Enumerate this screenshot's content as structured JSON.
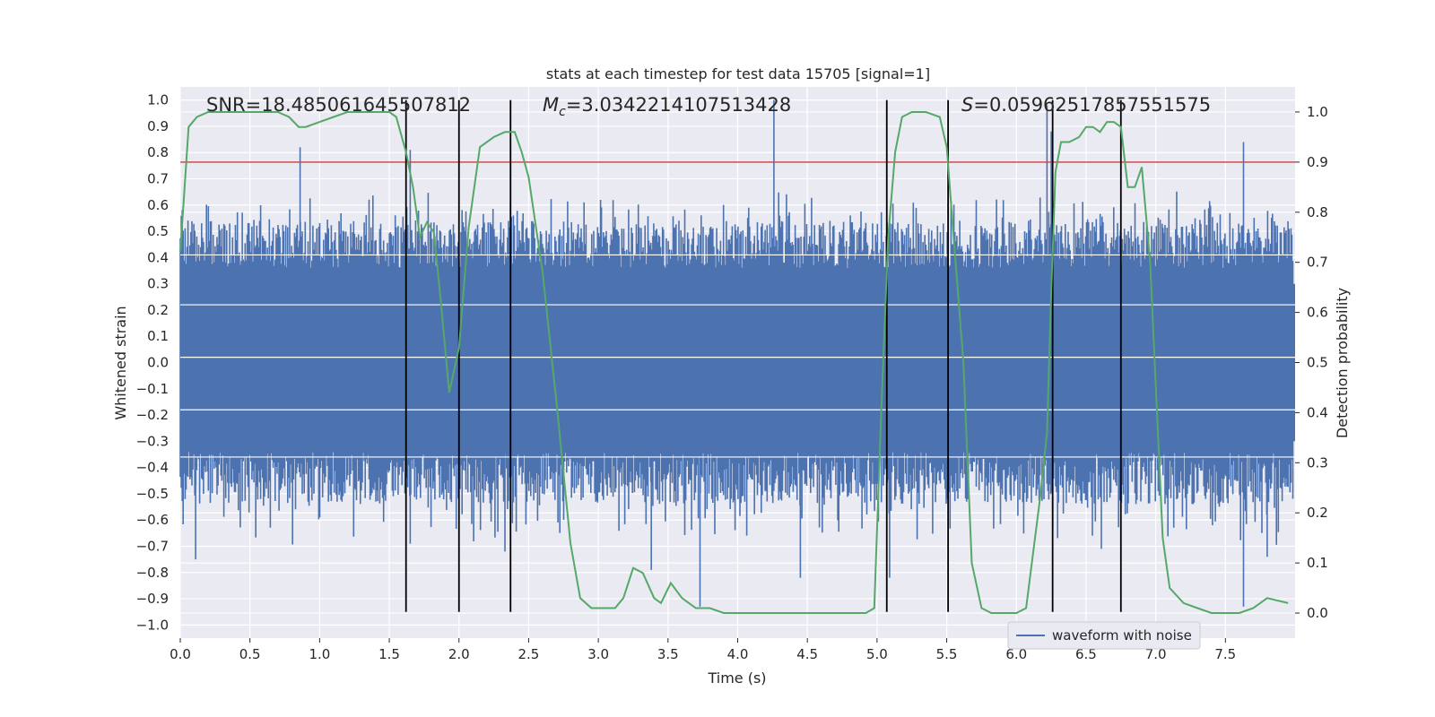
{
  "chart_data": {
    "type": "line",
    "title": "stats at each timestep for test data 15705 [signal=1]",
    "xlabel": "Time (s)",
    "ylabel": "Whitened strain",
    "ylabel_right": "Detection probability",
    "xlim": [
      0.0,
      8.0
    ],
    "ylim": [
      -1.05,
      1.05
    ],
    "ylim_right": [
      -0.05,
      1.05
    ],
    "xticks": [
      "0.0",
      "0.5",
      "1.0",
      "1.5",
      "2.0",
      "2.5",
      "3.0",
      "3.5",
      "4.0",
      "4.5",
      "5.0",
      "5.5",
      "6.0",
      "6.5",
      "7.0",
      "7.5"
    ],
    "yticks": [
      "1.0",
      "0.9",
      "0.8",
      "0.7",
      "0.6",
      "0.5",
      "0.4",
      "0.3",
      "0.2",
      "0.1",
      "0.0",
      "−0.1",
      "−0.2",
      "−0.3",
      "−0.4",
      "−0.5",
      "−0.6",
      "−0.7",
      "−0.8",
      "−0.9",
      "−1.0"
    ],
    "yticks_right": [
      "1.0",
      "0.9",
      "0.8",
      "0.7",
      "0.6",
      "0.5",
      "0.4",
      "0.3",
      "0.2",
      "0.1",
      "0.0"
    ],
    "annotations": {
      "snr_label": "SNR=18.485061645507812",
      "mc_prefix": "M",
      "mc_sub": "c",
      "mc_value": "=3.0342214107513428",
      "s_prefix": "S",
      "s_value": "=0.05962517857551575"
    },
    "legend": {
      "label": "waveform with noise",
      "location": "lower-right"
    },
    "threshold": {
      "value": 0.9,
      "color": "#c44e52"
    },
    "vertical_markers": [
      1.62,
      2.0,
      2.37,
      5.07,
      5.51,
      6.26,
      6.75
    ],
    "marker_range": [
      -0.95,
      1.0
    ],
    "waveform": {
      "name": "waveform with noise",
      "color": "#4c72b0",
      "envelope_hint": [
        -0.62,
        0.62
      ],
      "peaks": [
        {
          "x": 0.86,
          "y": 0.82
        },
        {
          "x": 1.65,
          "y": 0.81
        },
        {
          "x": 4.26,
          "y": 1.0
        },
        {
          "x": 6.22,
          "y": 0.98
        },
        {
          "x": 6.25,
          "y": 0.88
        },
        {
          "x": 7.63,
          "y": 0.84
        },
        {
          "x": 0.11,
          "y": -0.75
        },
        {
          "x": 1.65,
          "y": -0.69
        },
        {
          "x": 2.33,
          "y": -0.72
        },
        {
          "x": 3.38,
          "y": -0.79
        },
        {
          "x": 3.73,
          "y": -0.93
        },
        {
          "x": 4.45,
          "y": -0.82
        },
        {
          "x": 5.09,
          "y": -0.82
        },
        {
          "x": 6.61,
          "y": -0.71
        },
        {
          "x": 7.63,
          "y": -0.93
        },
        {
          "x": 7.8,
          "y": -0.74
        }
      ]
    },
    "probability": {
      "name": "detection probability",
      "color": "#55a868",
      "x": [
        0.0,
        0.06,
        0.12,
        0.2,
        0.3,
        0.4,
        0.5,
        0.6,
        0.7,
        0.78,
        0.85,
        0.9,
        1.0,
        1.1,
        1.2,
        1.3,
        1.4,
        1.5,
        1.55,
        1.62,
        1.67,
        1.72,
        1.77,
        1.82,
        1.87,
        1.93,
        2.0,
        2.07,
        2.15,
        2.25,
        2.33,
        2.4,
        2.45,
        2.5,
        2.6,
        2.7,
        2.8,
        2.87,
        2.95,
        3.05,
        3.12,
        3.18,
        3.25,
        3.32,
        3.4,
        3.45,
        3.52,
        3.6,
        3.7,
        3.8,
        3.9,
        4.0,
        4.2,
        4.4,
        4.6,
        4.8,
        4.92,
        4.98,
        5.03,
        5.08,
        5.13,
        5.18,
        5.25,
        5.35,
        5.45,
        5.5,
        5.55,
        5.62,
        5.68,
        5.75,
        5.82,
        5.9,
        6.0,
        6.07,
        6.12,
        6.17,
        6.22,
        6.25,
        6.28,
        6.32,
        6.38,
        6.45,
        6.5,
        6.55,
        6.6,
        6.65,
        6.7,
        6.75,
        6.8,
        6.85,
        6.9,
        6.96,
        7.05,
        7.1,
        7.2,
        7.3,
        7.4,
        7.5,
        7.6,
        7.7,
        7.8,
        7.95
      ],
      "y": [
        0.72,
        0.97,
        0.99,
        1.0,
        1.0,
        1.0,
        1.0,
        1.0,
        1.0,
        0.99,
        0.97,
        0.97,
        0.98,
        0.99,
        1.0,
        1.0,
        1.0,
        1.0,
        0.99,
        0.92,
        0.85,
        0.75,
        0.78,
        0.76,
        0.62,
        0.44,
        0.53,
        0.77,
        0.93,
        0.95,
        0.96,
        0.96,
        0.92,
        0.87,
        0.68,
        0.42,
        0.14,
        0.03,
        0.01,
        0.01,
        0.01,
        0.03,
        0.09,
        0.08,
        0.03,
        0.02,
        0.06,
        0.03,
        0.01,
        0.01,
        0.0,
        0.0,
        0.0,
        0.0,
        0.0,
        0.0,
        0.0,
        0.01,
        0.4,
        0.75,
        0.92,
        0.99,
        1.0,
        1.0,
        0.99,
        0.93,
        0.75,
        0.5,
        0.1,
        0.01,
        0.0,
        0.0,
        0.0,
        0.01,
        0.12,
        0.23,
        0.36,
        0.64,
        0.88,
        0.94,
        0.94,
        0.95,
        0.97,
        0.97,
        0.96,
        0.98,
        0.98,
        0.97,
        0.85,
        0.85,
        0.89,
        0.7,
        0.15,
        0.05,
        0.02,
        0.01,
        0.0,
        0.0,
        0.0,
        0.01,
        0.03,
        0.02
      ]
    }
  }
}
